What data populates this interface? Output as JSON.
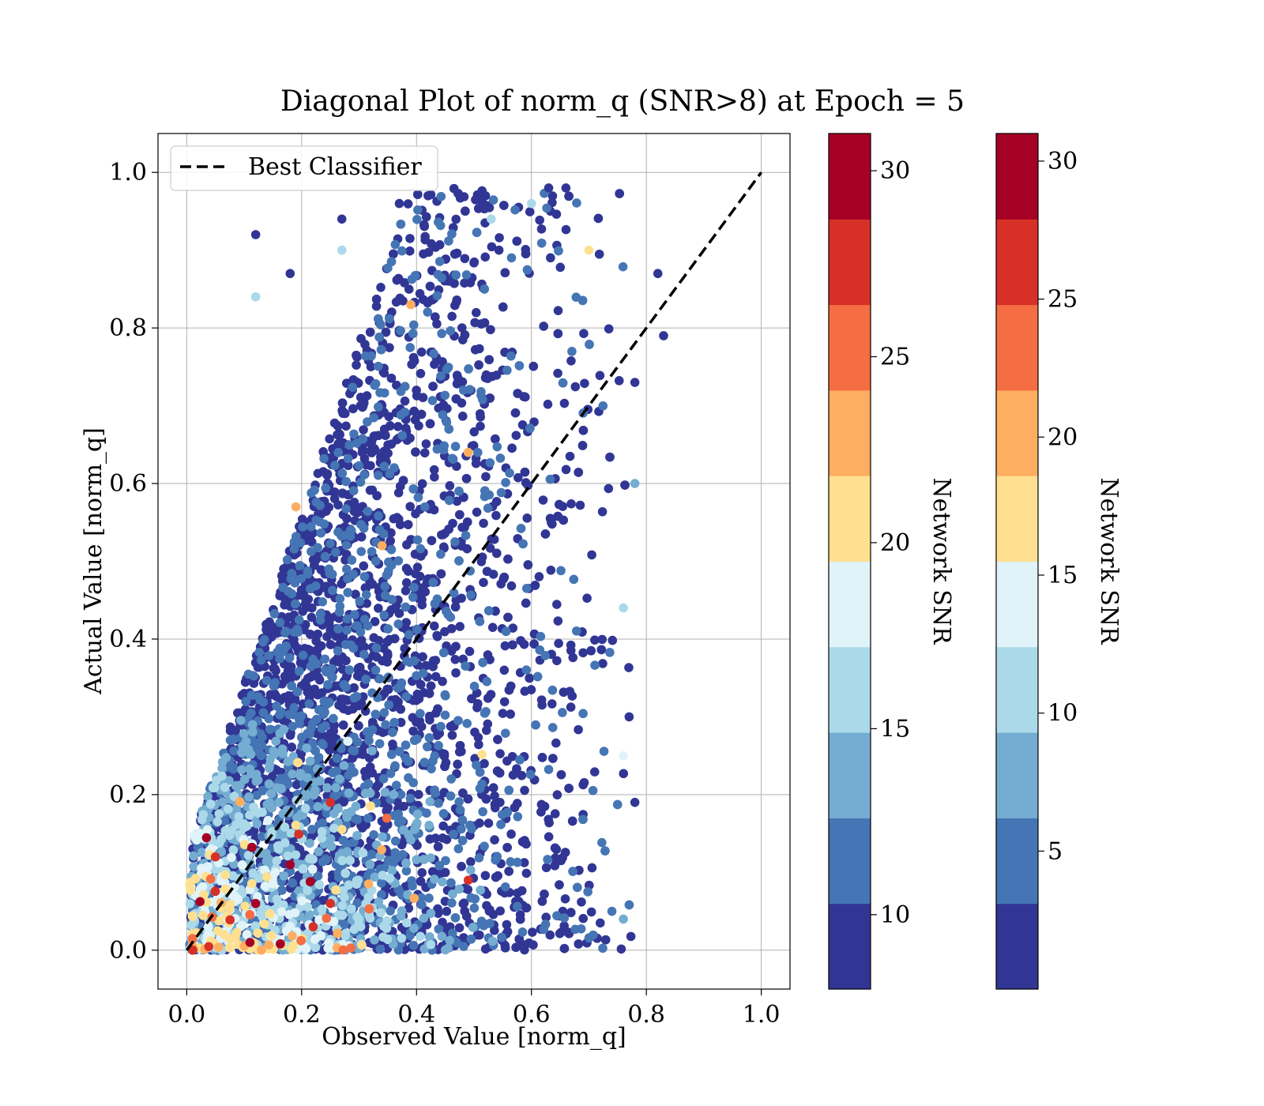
{
  "chart_data": {
    "type": "scatter",
    "title": "Diagonal Plot of norm_q (SNR>8) at Epoch = 5",
    "xlabel": "Observed Value [norm_q]",
    "ylabel": "Actual Value [norm_q]",
    "xlim": [
      -0.05,
      1.05
    ],
    "ylim": [
      -0.05,
      1.05
    ],
    "xticks": [
      0.0,
      0.2,
      0.4,
      0.6,
      0.8,
      1.0
    ],
    "yticks": [
      0.0,
      0.2,
      0.4,
      0.6,
      0.8,
      1.0
    ],
    "xtick_labels": [
      "0.0",
      "0.2",
      "0.4",
      "0.6",
      "0.8",
      "1.0"
    ],
    "ytick_labels": [
      "0.0",
      "0.2",
      "0.4",
      "0.6",
      "0.8",
      "1.0"
    ],
    "grid": true,
    "legend": {
      "position": "top-left",
      "entries": [
        "Best Classifier"
      ]
    },
    "reference_line": {
      "name": "Best Classifier",
      "x": [
        0.0,
        1.0
      ],
      "y": [
        0.0,
        1.0
      ],
      "style": "dashed",
      "color": "#000000"
    },
    "color_variable": "Network SNR",
    "sample_points": [
      {
        "x": 0.12,
        "y": 0.92,
        "snr": 8.5
      },
      {
        "x": 0.18,
        "y": 0.87,
        "snr": 9
      },
      {
        "x": 0.27,
        "y": 0.94,
        "snr": 9
      },
      {
        "x": 0.37,
        "y": 0.96,
        "snr": 9.5
      },
      {
        "x": 0.42,
        "y": 0.97,
        "snr": 9
      },
      {
        "x": 0.52,
        "y": 0.97,
        "snr": 9
      },
      {
        "x": 0.63,
        "y": 0.98,
        "snr": 9
      },
      {
        "x": 0.66,
        "y": 0.98,
        "snr": 9
      },
      {
        "x": 0.6,
        "y": 0.96,
        "snr": 15
      },
      {
        "x": 0.12,
        "y": 0.84,
        "snr": 15.5
      },
      {
        "x": 0.27,
        "y": 0.9,
        "snr": 16
      },
      {
        "x": 0.53,
        "y": 0.94,
        "snr": 15
      },
      {
        "x": 0.7,
        "y": 0.9,
        "snr": 20
      },
      {
        "x": 0.82,
        "y": 0.87,
        "snr": 9
      },
      {
        "x": 0.83,
        "y": 0.79,
        "snr": 9
      },
      {
        "x": 0.78,
        "y": 0.73,
        "snr": 9
      },
      {
        "x": 0.78,
        "y": 0.6,
        "snr": 13
      },
      {
        "x": 0.76,
        "y": 0.44,
        "snr": 15
      },
      {
        "x": 0.77,
        "y": 0.3,
        "snr": 9
      },
      {
        "x": 0.78,
        "y": 0.19,
        "snr": 9
      },
      {
        "x": 0.76,
        "y": 0.25,
        "snr": 19
      },
      {
        "x": 0.74,
        "y": 0.05,
        "snr": 11
      },
      {
        "x": 0.76,
        "y": 0.04,
        "snr": 13
      },
      {
        "x": 0.19,
        "y": 0.57,
        "snr": 24
      },
      {
        "x": 0.34,
        "y": 0.52,
        "snr": 24
      },
      {
        "x": 0.49,
        "y": 0.64,
        "snr": 24
      },
      {
        "x": 0.39,
        "y": 0.83,
        "snr": 22
      },
      {
        "x": 0.11,
        "y": 0.01,
        "snr": 30
      },
      {
        "x": 0.18,
        "y": 0.11,
        "snr": 29
      },
      {
        "x": 0.12,
        "y": 0.06,
        "snr": 29
      },
      {
        "x": 0.49,
        "y": 0.09,
        "snr": 28
      },
      {
        "x": 0.01,
        "y": 0.0,
        "snr": 27
      },
      {
        "x": 0.22,
        "y": 0.03,
        "snr": 27
      },
      {
        "x": 0.25,
        "y": 0.06,
        "snr": 28
      },
      {
        "x": 0.05,
        "y": 0.12,
        "snr": 27
      },
      {
        "x": 0.25,
        "y": 0.19,
        "snr": 28
      }
    ]
  },
  "colorbars": [
    {
      "label": "Network SNR",
      "range": [
        8,
        31
      ],
      "ticks": [
        10,
        15,
        20,
        25,
        30
      ],
      "tick_labels": [
        "10",
        "15",
        "20",
        "25",
        "30"
      ],
      "colors": [
        "#313695",
        "#4575b4",
        "#74add1",
        "#abd9e9",
        "#e0f3f8",
        "#fee090",
        "#fdae61",
        "#f46d43",
        "#d73027",
        "#a50026"
      ]
    },
    {
      "label": "Network SNR",
      "range": [
        0,
        31
      ],
      "ticks": [
        5,
        10,
        15,
        20,
        25,
        30
      ],
      "tick_labels": [
        "5",
        "10",
        "15",
        "20",
        "25",
        "30"
      ],
      "colors": [
        "#313695",
        "#4575b4",
        "#74add1",
        "#abd9e9",
        "#e0f3f8",
        "#fee090",
        "#fdae61",
        "#f46d43",
        "#d73027",
        "#a50026"
      ]
    }
  ]
}
